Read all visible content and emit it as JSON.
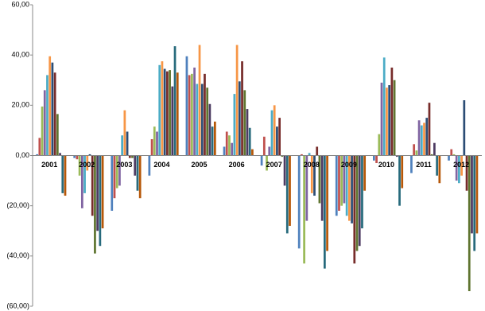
{
  "chart_data": {
    "type": "bar",
    "categories": [
      "2001",
      "2002",
      "2003",
      "2004",
      "2005",
      "2006",
      "2007",
      "2008",
      "2009",
      "2010",
      "2011",
      "2012"
    ],
    "series": [
      {
        "color": "#4F81BD",
        "values": [
          0.5,
          -1,
          -22,
          -8,
          39.5,
          3.5,
          -4,
          -37,
          -24,
          -2,
          -7,
          -2
        ]
      },
      {
        "color": "#C0504D",
        "values": [
          7,
          -1.5,
          -17,
          6.5,
          32,
          9.5,
          7.5,
          0.5,
          -22,
          -3,
          4.5,
          2.5
        ]
      },
      {
        "color": "#9BBB59",
        "values": [
          19.5,
          -8,
          -13,
          11.5,
          32.5,
          8,
          -6,
          -43,
          -20,
          8.5,
          2,
          0.5
        ]
      },
      {
        "color": "#8064A2",
        "values": [
          26,
          -21,
          -12,
          9.5,
          35,
          5,
          3.5,
          -26,
          -19,
          29,
          14,
          -10
        ]
      },
      {
        "color": "#4BACC6",
        "values": [
          32,
          -15,
          8,
          36,
          28.5,
          24.5,
          18,
          1,
          -24,
          39,
          12,
          -11
        ]
      },
      {
        "color": "#F79646",
        "values": [
          39.5,
          -6,
          18,
          37.5,
          44,
          44,
          20,
          -15,
          -26,
          27,
          13,
          -8
        ]
      },
      {
        "color": "#2C4D75",
        "values": [
          37,
          0.5,
          9.5,
          34.5,
          28.5,
          29.5,
          11.5,
          -16,
          -27,
          28,
          15,
          22
        ]
      },
      {
        "color": "#772C2A",
        "values": [
          33,
          -24,
          -1,
          33.5,
          32.5,
          37.5,
          15,
          3.5,
          -43,
          35,
          21,
          -14
        ]
      },
      {
        "color": "#5F7530",
        "values": [
          16.5,
          -39,
          -1,
          34,
          27,
          26,
          -0.5,
          -19,
          -38,
          30,
          0.5,
          -54
        ]
      },
      {
        "color": "#4D3B62",
        "values": [
          1,
          -30,
          -8,
          27.5,
          20.5,
          18.5,
          -12,
          -26,
          -36,
          -0.5,
          5,
          -31
        ]
      },
      {
        "color": "#276A7C",
        "values": [
          -15,
          -36,
          -14,
          43.5,
          11.5,
          11,
          -31,
          -45,
          -29,
          -20,
          -8,
          -38
        ]
      },
      {
        "color": "#B65708",
        "values": [
          -16,
          -29,
          -17,
          33,
          13.5,
          2.5,
          -28,
          -38,
          -14,
          -13,
          -11,
          -31
        ]
      }
    ],
    "ylim": [
      -60,
      60
    ],
    "yticks": [
      {
        "value": -60,
        "label": "(60,00)"
      },
      {
        "value": -40,
        "label": "(40,00)"
      },
      {
        "value": -20,
        "label": "(20,00)"
      },
      {
        "value": 0,
        "label": "0,00"
      },
      {
        "value": 20,
        "label": "20,00"
      },
      {
        "value": 40,
        "label": "40,00"
      },
      {
        "value": 60,
        "label": "60,00"
      }
    ],
    "grid": false
  }
}
